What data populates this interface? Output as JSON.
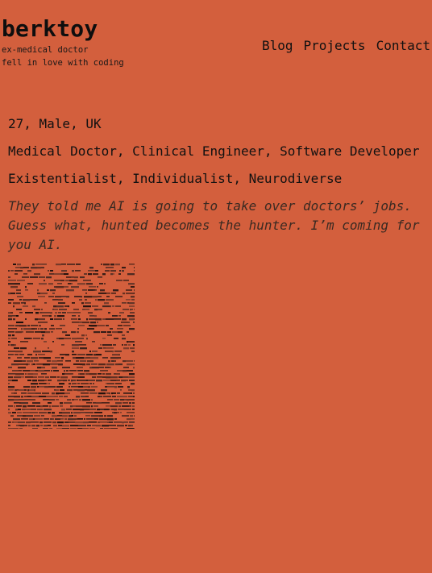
{
  "site": {
    "title": "berktoy",
    "taglines": [
      "ex-medical doctor",
      "fell in love with coding"
    ]
  },
  "nav": {
    "items": [
      {
        "label": "Blog"
      },
      {
        "label": "Projects"
      },
      {
        "label": "Contact"
      }
    ]
  },
  "bio": {
    "line1": "27, Male, UK",
    "line2": "Medical Doctor, Clinical Engineer, Software Developer",
    "line3": "Existentialist, Individualist, Neurodiverse",
    "quote": "They told me AI is going to take over doctors’ jobs. Guess what, hunted becomes the hunter. I’m coming for you AI."
  },
  "colors": {
    "background": "#d35f3d",
    "text": "#111111",
    "quote": "#3a2a22"
  }
}
